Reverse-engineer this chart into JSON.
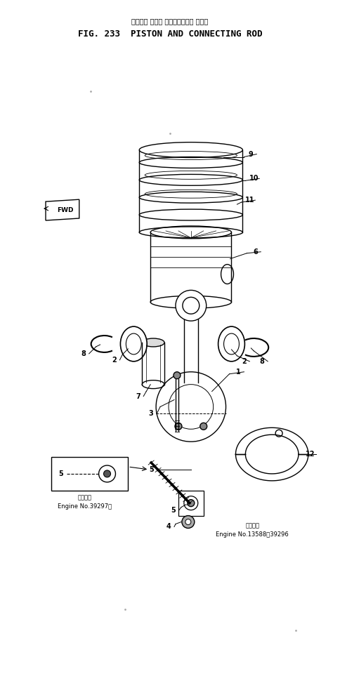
{
  "title_japanese": "ピストン および コネクティング ロッド",
  "title_english": "FIG. 233  PISTON AND CONNECTING ROD",
  "bg_color": "#ffffff",
  "line_color": "#000000",
  "note1_japanese": "適用号機",
  "note1_engine": "Engine No.39297～",
  "note2_japanese": "適用号機",
  "note2_engine": "Engine No.13588～39296"
}
